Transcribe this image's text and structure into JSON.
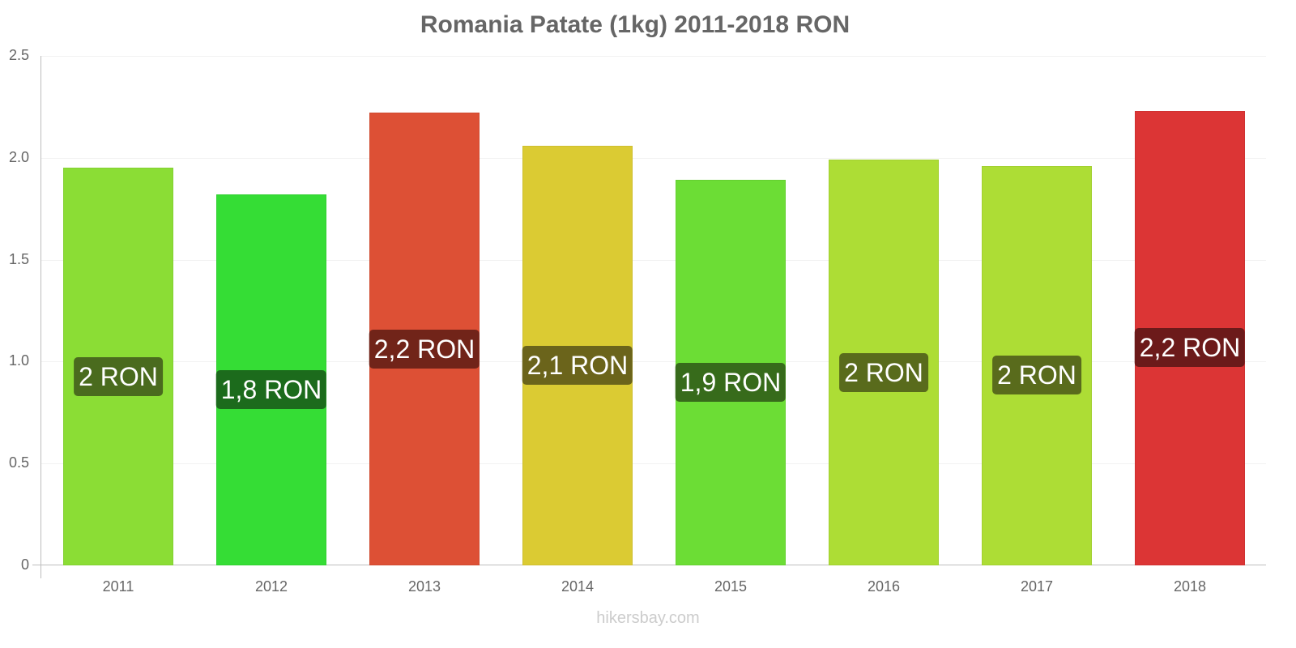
{
  "chart_data": {
    "type": "bar",
    "title": "Romania Patate (1kg) 2011-2018 RON",
    "xlabel": "",
    "ylabel": "",
    "ylim": [
      0,
      2.5
    ],
    "yticks": [
      "0",
      "0.5",
      "1.0",
      "1.5",
      "2.0",
      "2.5"
    ],
    "categories": [
      "2011",
      "2012",
      "2013",
      "2014",
      "2015",
      "2016",
      "2017",
      "2018"
    ],
    "values": [
      1.95,
      1.82,
      2.22,
      2.06,
      1.89,
      1.99,
      1.96,
      2.23
    ],
    "data_labels": [
      "2 RON",
      "1,8 RON",
      "2,2 RON",
      "2,1 RON",
      "1,9 RON",
      "2 RON",
      "2 RON",
      "2,2 RON"
    ],
    "bar_colors": [
      "#8bdd35",
      "#35dd35",
      "#dd5035",
      "#dbcb33",
      "#6cdd35",
      "#addd35",
      "#addd35",
      "#dc3535"
    ],
    "label_colors": [
      "#4a6b1e",
      "#1c6b1c",
      "#712419",
      "#6b641b",
      "#376b1b",
      "#596b1c",
      "#596b1c",
      "#6c1a1a"
    ],
    "grid": true,
    "legend": null
  },
  "watermark": "hikersbay.com"
}
